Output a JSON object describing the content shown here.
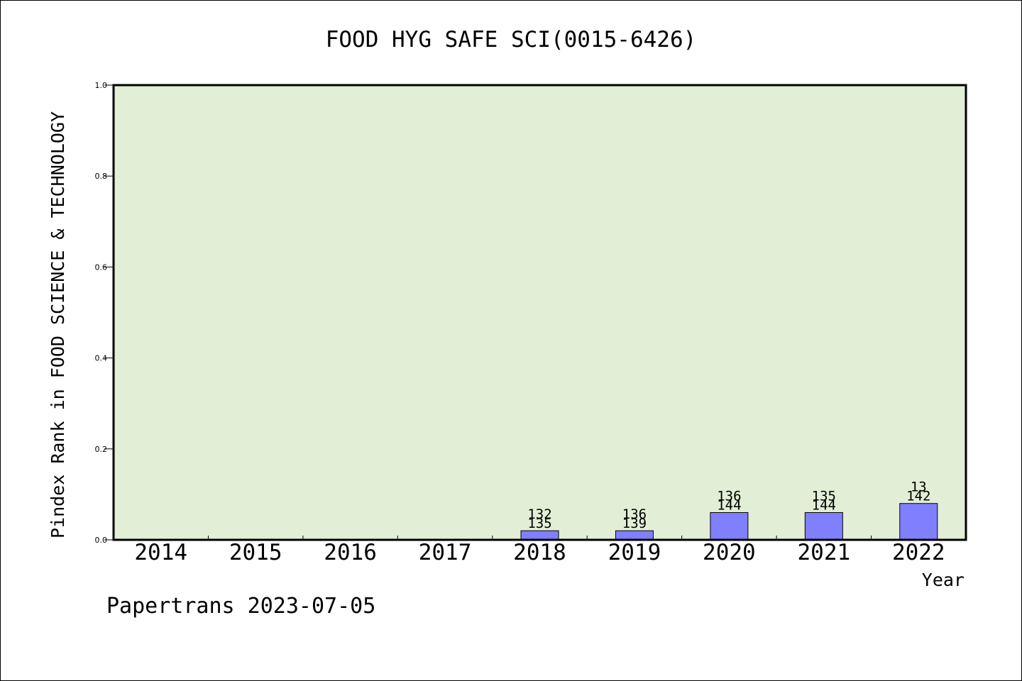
{
  "chart_data": {
    "type": "bar",
    "title": "FOOD HYG SAFE SCI(0015-6426)",
    "xlabel": "Year",
    "ylabel": "Pindex Rank in FOOD SCIENCE & TECHNOLOGY",
    "ylim": [
      0,
      1.0
    ],
    "yticks": [
      "0.0",
      "0.2",
      "0.4",
      "0.6",
      "0.8",
      "1.0"
    ],
    "categories": [
      "2014",
      "2015",
      "2016",
      "2017",
      "2018",
      "2019",
      "2020",
      "2021",
      "2022"
    ],
    "values": [
      0,
      0,
      0,
      0,
      0.02,
      0.02,
      0.06,
      0.06,
      0.08
    ],
    "bar_labels": [
      {
        "top": "",
        "bottom": ""
      },
      {
        "top": "",
        "bottom": ""
      },
      {
        "top": "",
        "bottom": ""
      },
      {
        "top": "",
        "bottom": ""
      },
      {
        "top": "132",
        "bottom": "135"
      },
      {
        "top": "136",
        "bottom": "139"
      },
      {
        "top": "136",
        "bottom": "144"
      },
      {
        "top": "135",
        "bottom": "144"
      },
      {
        "top": "13",
        "bottom": "142"
      }
    ],
    "grid": false,
    "colors": {
      "plot_background": "#e2efd6",
      "bar_fill": "#8080ff",
      "bar_stroke": "#000000",
      "axis": "#000000"
    }
  },
  "footer": {
    "watermark": "Papertrans 2023-07-05"
  }
}
